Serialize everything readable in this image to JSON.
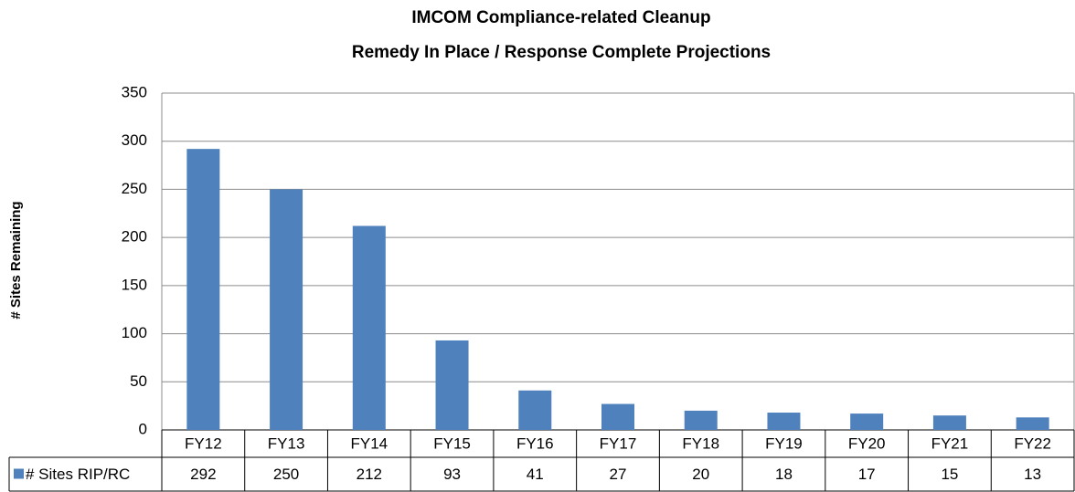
{
  "chart_data": {
    "type": "bar",
    "title": "IMCOM Compliance-related Cleanup",
    "subtitle": "Remedy In Place / Response Complete Projections",
    "ylabel": "# Sites Remaining",
    "categories": [
      "FY12",
      "FY13",
      "FY14",
      "FY15",
      "FY16",
      "FY17",
      "FY18",
      "FY19",
      "FY20",
      "FY21",
      "FY22"
    ],
    "series": [
      {
        "name": "# Sites RIP/RC",
        "color": "#4f81bd",
        "values": [
          292,
          250,
          212,
          93,
          41,
          27,
          20,
          18,
          17,
          15,
          13
        ]
      }
    ],
    "ylim": [
      0,
      350
    ],
    "yticks": [
      0,
      50,
      100,
      150,
      200,
      250,
      300,
      350
    ],
    "grid": true
  }
}
